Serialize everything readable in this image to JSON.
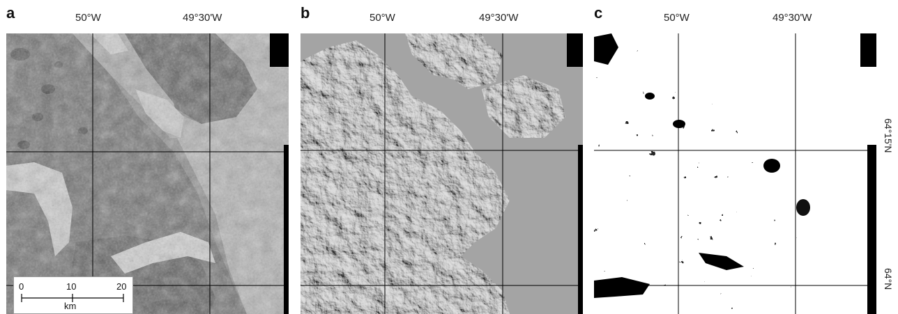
{
  "panels": [
    {
      "label": "a",
      "lon_labels": [
        "50°W",
        "49°30'W"
      ]
    },
    {
      "label": "b",
      "lon_labels": [
        "50°W",
        "49°30'W"
      ]
    },
    {
      "label": "c",
      "lon_labels": [
        "50°W",
        "49°30'W"
      ]
    }
  ],
  "lat_labels": [
    "64°15'N",
    "64°N"
  ],
  "scalebar": {
    "ticks": [
      "0",
      "10",
      "20"
    ],
    "unit": "km"
  }
}
